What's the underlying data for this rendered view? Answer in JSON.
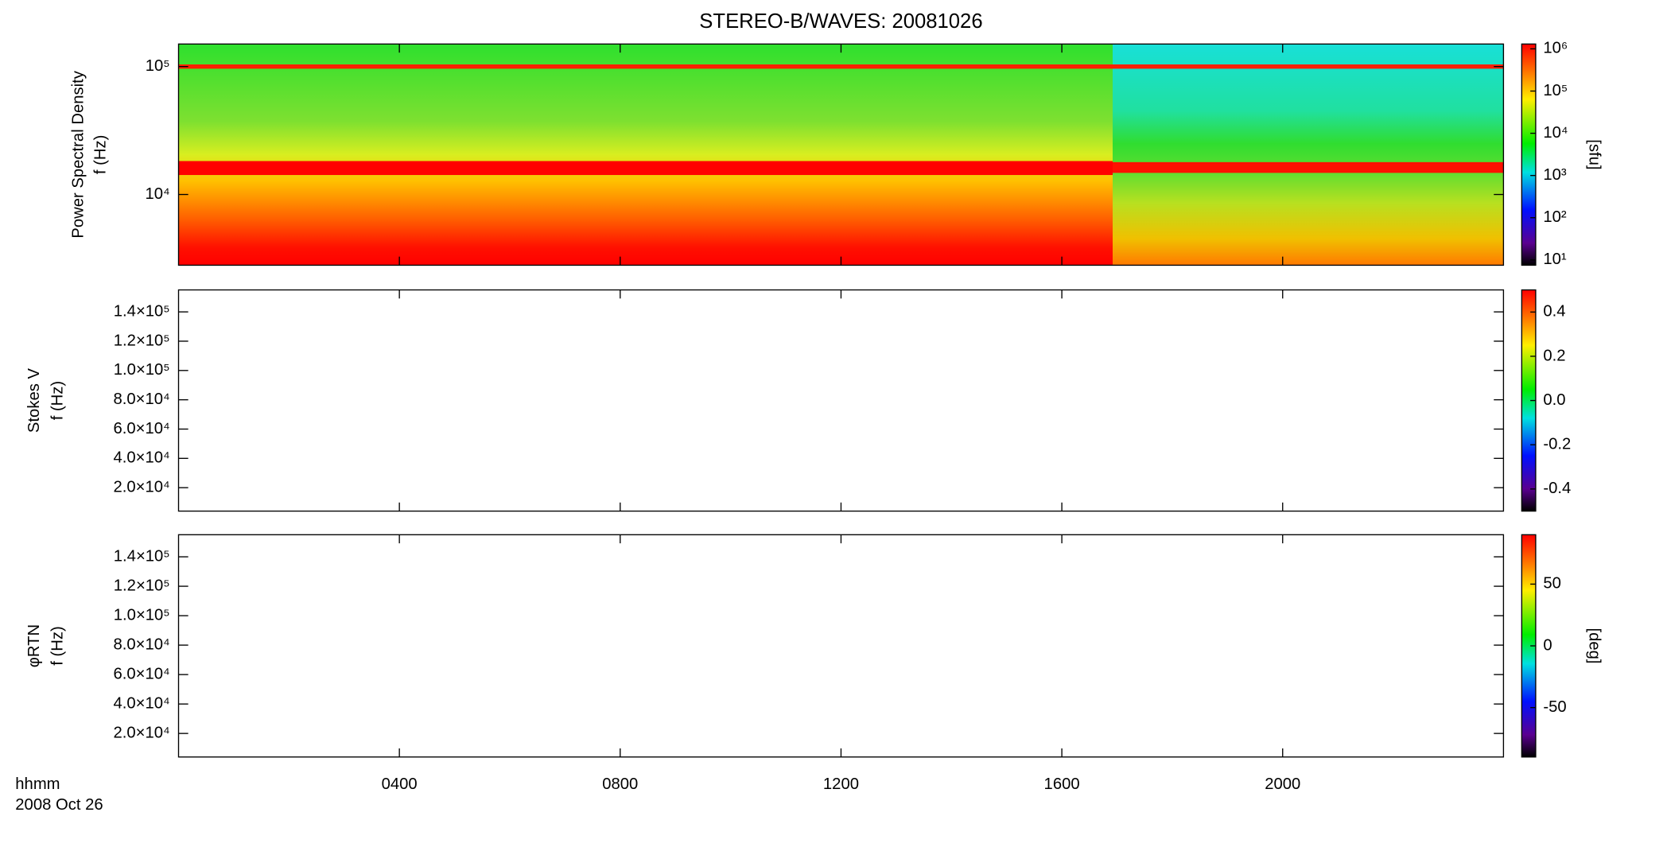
{
  "chart_data": [
    {
      "type": "heatmap",
      "title": "STEREO-B/WAVES: 20081026",
      "ylabel": [
        "Power Spectral Density",
        "f (Hz)"
      ],
      "ylog": true,
      "ylim": [
        2800,
        150000
      ],
      "yticks": [
        {
          "value": 10000,
          "label": "10⁴"
        },
        {
          "value": 100000,
          "label": "10⁵"
        }
      ],
      "xlim": [
        0,
        24
      ],
      "colorbar": {
        "label": "[sfu]",
        "log": true,
        "lim": [
          7.5,
          1300000
        ],
        "ticks": [
          {
            "value": 10,
            "label": "10¹"
          },
          {
            "value": 100,
            "label": "10²"
          },
          {
            "value": 1000,
            "label": "10³"
          },
          {
            "value": 10000,
            "label": "10⁴"
          },
          {
            "value": 100000,
            "label": "10⁵"
          },
          {
            "value": 1000000,
            "label": "10⁶"
          }
        ]
      }
    },
    {
      "type": "heatmap",
      "ylabel": [
        "Stokes V",
        "f (Hz)"
      ],
      "ylim": [
        4000,
        155000
      ],
      "yticks": [
        {
          "value": 20000,
          "label": "2.0×10⁴"
        },
        {
          "value": 40000,
          "label": "4.0×10⁴"
        },
        {
          "value": 60000,
          "label": "6.0×10⁴"
        },
        {
          "value": 80000,
          "label": "8.0×10⁴"
        },
        {
          "value": 100000,
          "label": "1.0×10⁵"
        },
        {
          "value": 120000,
          "label": "1.2×10⁵"
        },
        {
          "value": 140000,
          "label": "1.4×10⁵"
        }
      ],
      "xlim": [
        0,
        24
      ],
      "colorbar": {
        "lim": [
          -0.5,
          0.5
        ],
        "ticks": [
          -0.4,
          -0.2,
          {
            "value": 0,
            "label": "0.0"
          },
          0.2,
          0.4
        ]
      }
    },
    {
      "type": "heatmap",
      "ylabel": [
        "φRTN",
        "f (Hz)"
      ],
      "ylim": [
        4000,
        155000
      ],
      "yticks": [
        {
          "value": 20000,
          "label": "2.0×10⁴"
        },
        {
          "value": 40000,
          "label": "4.0×10⁴"
        },
        {
          "value": 60000,
          "label": "6.0×10⁴"
        },
        {
          "value": 80000,
          "label": "8.0×10⁴"
        },
        {
          "value": 100000,
          "label": "1.0×10⁵"
        },
        {
          "value": 120000,
          "label": "1.2×10⁵"
        },
        {
          "value": 140000,
          "label": "1.4×10⁵"
        }
      ],
      "xlim": [
        0,
        24
      ],
      "xticks": [
        {
          "value": 4,
          "label": "0400"
        },
        {
          "value": 8,
          "label": "0800"
        },
        {
          "value": 12,
          "label": "1200"
        },
        {
          "value": 16,
          "label": "1600"
        },
        {
          "value": 20,
          "label": "2000"
        }
      ],
      "xlabel": "hhmm",
      "date": "2008 Oct 26",
      "colorbar": {
        "label": "[deg]",
        "lim": [
          -90,
          90
        ],
        "ticks": [
          -50,
          0,
          50
        ]
      }
    }
  ]
}
